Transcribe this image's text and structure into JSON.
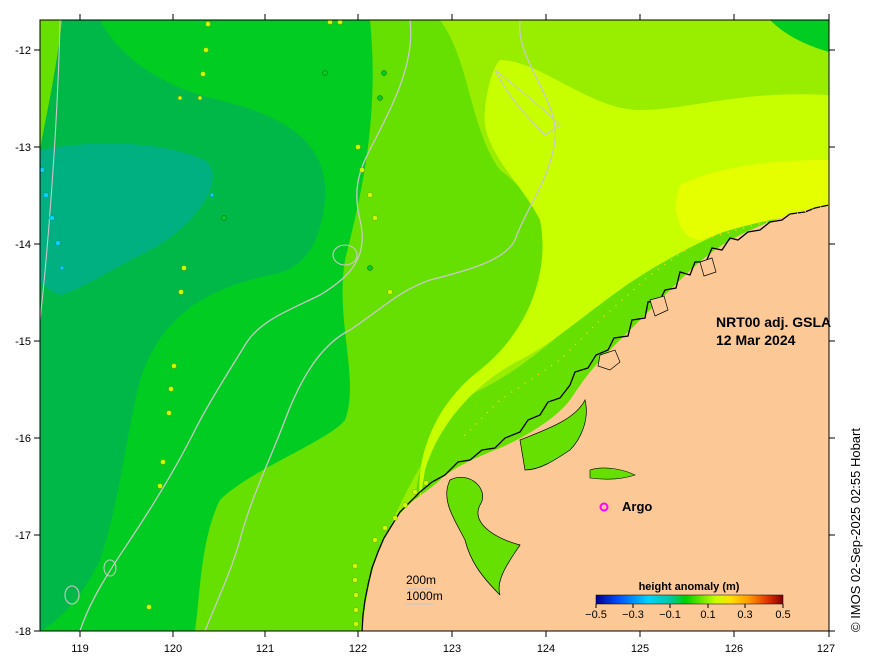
{
  "map": {
    "title_line1": "NRT00 adj. GSLA",
    "title_line2": "12 Mar 2024",
    "credit": "© IMOS 02-Sep-2025 02:55 Hobart",
    "x_ticks": [
      "119",
      "120",
      "121",
      "122",
      "123",
      "124",
      "125",
      "126",
      "127"
    ],
    "y_ticks": [
      "-12",
      "-13",
      "-14",
      "-15",
      "-16",
      "-17",
      "-18"
    ],
    "x_range": [
      118.6,
      127
    ],
    "y_range": [
      -18,
      -11.7
    ]
  },
  "legend": {
    "title": "height anomaly (m)",
    "labels": [
      "−0.5",
      "−0.3",
      "−0.1",
      "0.1",
      "0.3",
      "0.5"
    ],
    "colors": [
      "#00008f",
      "#0050ff",
      "#00d4ff",
      "#00c8a0",
      "#00d000",
      "#66e600",
      "#c8ff00",
      "#ffe000",
      "#ff9800",
      "#e03000",
      "#800000"
    ]
  },
  "argo": {
    "label": "Argo",
    "color": "#ff00ff",
    "lon": 124.6,
    "lat": -16.7
  },
  "isobaths": {
    "label_200": "200m",
    "label_1000": "1000m"
  },
  "colors": {
    "land": "#fcc896",
    "field_high": "#c8ff00",
    "field_mid_high": "#99ee00",
    "field_mid": "#66e000",
    "field_low": "#00cc22",
    "field_lower": "#00b848",
    "field_lowest": "#00b080"
  }
}
